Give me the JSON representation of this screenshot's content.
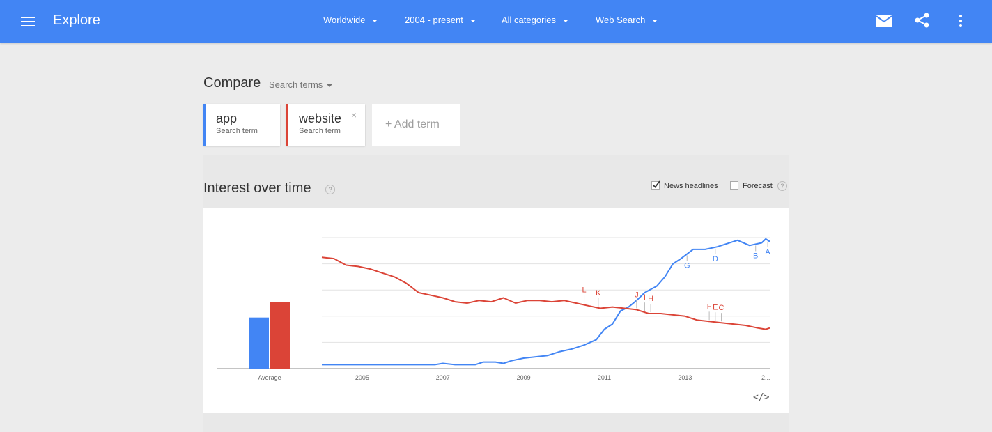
{
  "header": {
    "title": "Explore",
    "filters": [
      {
        "label": "Worldwide"
      },
      {
        "label": "2004 - present"
      },
      {
        "label": "All categories"
      },
      {
        "label": "Web Search"
      }
    ],
    "bar_color": "#4285f4",
    "icons": [
      "menu-icon",
      "mail-icon",
      "share-icon",
      "more-vert-icon"
    ]
  },
  "compare": {
    "title": "Compare",
    "mode_label": "Search terms",
    "terms": [
      {
        "name": "app",
        "sub": "Search term",
        "color": "#4285f4"
      },
      {
        "name": "website",
        "sub": "Search term",
        "color": "#db4437",
        "close": "×"
      }
    ],
    "add_term": "+ Add term"
  },
  "interest": {
    "title": "Interest over time",
    "help": "?",
    "news_headlines": {
      "label": "News headlines",
      "checked": true
    },
    "forecast": {
      "label": "Forecast",
      "checked": false
    },
    "embed_label": "</>"
  },
  "chart_data": {
    "type": "line",
    "x_tick_labels": [
      "2005",
      "2007",
      "2009",
      "2011",
      "2013",
      "2..."
    ],
    "x_range": [
      2004.0,
      2015.1
    ],
    "y_range": [
      0,
      100
    ],
    "grid": true,
    "average": {
      "label": "Average",
      "values": [
        39,
        51
      ]
    },
    "series": [
      {
        "name": "app",
        "color": "#4285f4",
        "points": [
          [
            2004.0,
            3
          ],
          [
            2006.8,
            3
          ],
          [
            2007.0,
            4
          ],
          [
            2007.3,
            3
          ],
          [
            2007.8,
            3
          ],
          [
            2008.0,
            5
          ],
          [
            2008.3,
            5
          ],
          [
            2008.5,
            4
          ],
          [
            2008.7,
            6
          ],
          [
            2009.0,
            8
          ],
          [
            2009.3,
            9
          ],
          [
            2009.6,
            10
          ],
          [
            2009.9,
            13
          ],
          [
            2010.2,
            15
          ],
          [
            2010.5,
            18
          ],
          [
            2010.8,
            22
          ],
          [
            2011.0,
            30
          ],
          [
            2011.2,
            34
          ],
          [
            2011.4,
            44
          ],
          [
            2011.6,
            47
          ],
          [
            2011.8,
            52
          ],
          [
            2012.0,
            58
          ],
          [
            2012.3,
            63
          ],
          [
            2012.5,
            70
          ],
          [
            2012.7,
            80
          ],
          [
            2012.9,
            84
          ],
          [
            2013.2,
            91
          ],
          [
            2013.5,
            91
          ],
          [
            2013.8,
            93
          ],
          [
            2014.0,
            95
          ],
          [
            2014.3,
            98
          ],
          [
            2014.6,
            94
          ],
          [
            2014.9,
            96
          ],
          [
            2015.0,
            99
          ],
          [
            2015.1,
            97
          ]
        ]
      },
      {
        "name": "website",
        "color": "#db4437",
        "points": [
          [
            2004.0,
            85
          ],
          [
            2004.3,
            84
          ],
          [
            2004.6,
            79
          ],
          [
            2004.9,
            78
          ],
          [
            2005.2,
            76
          ],
          [
            2005.5,
            73
          ],
          [
            2005.8,
            70
          ],
          [
            2006.1,
            65
          ],
          [
            2006.4,
            58
          ],
          [
            2006.7,
            56
          ],
          [
            2007.0,
            54
          ],
          [
            2007.3,
            51
          ],
          [
            2007.6,
            50
          ],
          [
            2007.9,
            52
          ],
          [
            2008.2,
            51
          ],
          [
            2008.5,
            54
          ],
          [
            2008.8,
            50
          ],
          [
            2009.1,
            52
          ],
          [
            2009.4,
            52
          ],
          [
            2009.7,
            51
          ],
          [
            2010.0,
            52
          ],
          [
            2010.3,
            50
          ],
          [
            2010.6,
            48
          ],
          [
            2010.9,
            46
          ],
          [
            2011.2,
            47
          ],
          [
            2011.5,
            46
          ],
          [
            2011.8,
            45
          ],
          [
            2012.1,
            42
          ],
          [
            2012.4,
            42
          ],
          [
            2012.7,
            41
          ],
          [
            2013.0,
            40
          ],
          [
            2013.3,
            37
          ],
          [
            2013.6,
            36
          ],
          [
            2013.9,
            35
          ],
          [
            2014.2,
            34
          ],
          [
            2014.5,
            33
          ],
          [
            2014.8,
            31
          ],
          [
            2015.0,
            30
          ],
          [
            2015.1,
            31
          ]
        ]
      }
    ],
    "annotations": [
      {
        "label": "A",
        "x": 2015.05,
        "series": "app"
      },
      {
        "label": "B",
        "x": 2014.75,
        "series": "app"
      },
      {
        "label": "D",
        "x": 2013.75,
        "series": "app"
      },
      {
        "label": "G",
        "x": 2013.05,
        "series": "app"
      },
      {
        "label": "L",
        "x": 2010.5,
        "series": "website"
      },
      {
        "label": "K",
        "x": 2010.85,
        "series": "website"
      },
      {
        "label": "J",
        "x": 2011.8,
        "series": "website"
      },
      {
        "label": "I",
        "x": 2012.0,
        "series": "website"
      },
      {
        "label": "H",
        "x": 2012.15,
        "series": "website"
      },
      {
        "label": "F",
        "x": 2013.6,
        "series": "website"
      },
      {
        "label": "E",
        "x": 2013.75,
        "series": "website"
      },
      {
        "label": "C",
        "x": 2013.9,
        "series": "website"
      }
    ]
  }
}
